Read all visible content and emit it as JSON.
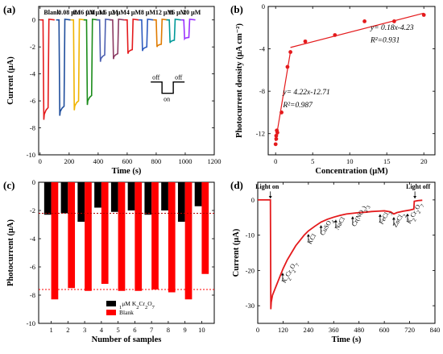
{
  "chart_data": [
    {
      "panel": "(a)",
      "type": "line",
      "xlabel": "Time (s)",
      "ylabel": "Current (μA)",
      "xlim": [
        -10,
        1200
      ],
      "ylim": [
        -10,
        1
      ],
      "xticks": [
        0,
        200,
        400,
        600,
        800,
        1000,
        1200
      ],
      "yticks": [
        0,
        -2,
        -4,
        -6,
        -8,
        -10
      ],
      "grid": false,
      "series": [
        {
          "name": "Blank",
          "color": "#e41a1c",
          "on": 20,
          "off": 55,
          "min": -7.4,
          "end": -6.5
        },
        {
          "name": "0.08 μM",
          "color": "#1f4e9c",
          "on": 130,
          "off": 165,
          "min": -7.1,
          "end": -6.4
        },
        {
          "name": "0.16 μM",
          "color": "#f0b400",
          "on": 230,
          "off": 265,
          "min": -6.7,
          "end": -6.0
        },
        {
          "name": "0.8 μM",
          "color": "#1a8c1a",
          "on": 320,
          "off": 355,
          "min": -6.3,
          "end": -5.6
        },
        {
          "name": "1.6 μM",
          "color": "#4b5fb0",
          "on": 410,
          "off": 445,
          "min": -3.1,
          "end": -2.6
        },
        {
          "name": "2 μM",
          "color": "#8b3a62",
          "on": 500,
          "off": 535,
          "min": -2.9,
          "end": -2.5
        },
        {
          "name": "4 μM",
          "color": "#e41a1c",
          "on": 600,
          "off": 635,
          "min": -2.5,
          "end": -2.2
        },
        {
          "name": "8 μM",
          "color": "#2d5bbf",
          "on": 700,
          "off": 735,
          "min": -2.3,
          "end": -2.0
        },
        {
          "name": "12 μM",
          "color": "#e07b00",
          "on": 800,
          "off": 835,
          "min": -2.0,
          "end": -1.8
        },
        {
          "name": "16 μM",
          "color": "#009999",
          "on": 890,
          "off": 925,
          "min": -1.7,
          "end": -1.5
        },
        {
          "name": "20 μM",
          "color": "#9b30ff",
          "on": 990,
          "off": 1025,
          "min": -1.4,
          "end": -1.3
        }
      ],
      "inset": {
        "off_left": "off",
        "off_right": "off",
        "on": "on"
      }
    },
    {
      "panel": "(b)",
      "type": "scatter",
      "xlabel": "Concentration (μM)",
      "ylabel": "Photocurrent density (μA cm⁻²)",
      "xlim": [
        -1,
        21.5
      ],
      "ylim": [
        -14,
        0
      ],
      "xticks": [
        0,
        5,
        10,
        15,
        20
      ],
      "yticks": [
        0,
        -4,
        -8,
        -12
      ],
      "grid": false,
      "points": [
        {
          "x": 0,
          "y": -13.0
        },
        {
          "x": 0.08,
          "y": -12.5
        },
        {
          "x": 0.08,
          "y": -12.2
        },
        {
          "x": 0.16,
          "y": -11.7
        },
        {
          "x": 0.24,
          "y": -11.9
        },
        {
          "x": 0.8,
          "y": -10.0
        },
        {
          "x": 1.6,
          "y": -5.7
        },
        {
          "x": 2,
          "y": -4.3
        },
        {
          "x": 4,
          "y": -3.3
        },
        {
          "x": 8,
          "y": -2.7
        },
        {
          "x": 12,
          "y": -1.4
        },
        {
          "x": 16,
          "y": -1.4
        },
        {
          "x": 20,
          "y": -0.8
        }
      ],
      "fits": [
        {
          "x_range": [
            0,
            2
          ],
          "slope": 4.22,
          "intercept": -12.71
        },
        {
          "x_range": [
            2,
            20
          ],
          "slope": 0.18,
          "intercept": -4.23
        }
      ],
      "annotations": {
        "fit_high": "y= 0.18x-4.23",
        "r2_high": "R²=0.931",
        "fit_low": "y= 4.22x-12.71",
        "r2_low": "R²=0.987"
      },
      "color": "#e41a1c"
    },
    {
      "panel": "(c)",
      "type": "bar",
      "xlabel": "Number of samples",
      "ylabel": "Photocurrent (μA)",
      "ylim": [
        -10,
        0
      ],
      "yticks": [
        0,
        -2,
        -4,
        -6,
        -8,
        -10
      ],
      "categories": [
        "1",
        "2",
        "3",
        "4",
        "5",
        "6",
        "7",
        "8",
        "9",
        "10"
      ],
      "series": [
        {
          "name": "1μM K2Cr2O7",
          "color": "#000000",
          "values": [
            -2.3,
            -2.2,
            -2.8,
            -1.8,
            -2.1,
            -2.0,
            -2.3,
            -2.0,
            -2.8,
            -1.7
          ]
        },
        {
          "name": "Blank",
          "color": "#ff0000",
          "values": [
            -8.3,
            -7.5,
            -7.7,
            -7.2,
            -7.7,
            -7.7,
            -7.6,
            -7.8,
            -8.3,
            -6.5
          ]
        }
      ],
      "reference_lines": [
        -2.2,
        -7.6
      ],
      "legend": "bottom-center",
      "grid": false
    },
    {
      "panel": "(d)",
      "type": "line",
      "xlabel": "Time (s)",
      "ylabel": "Current (μA)",
      "xlim": [
        0,
        840
      ],
      "ylim": [
        -35,
        5
      ],
      "xticks": [
        0,
        120,
        240,
        360,
        480,
        600,
        720,
        840
      ],
      "yticks": [
        0,
        -10,
        -20,
        -30
      ],
      "color": "#e41a1c",
      "x": [
        0,
        60,
        62,
        64,
        70,
        80,
        90,
        100,
        110,
        120,
        140,
        160,
        180,
        200,
        220,
        240,
        270,
        300,
        330,
        360,
        390,
        420,
        450,
        480,
        510,
        540,
        570,
        600,
        630,
        645,
        660,
        690,
        720,
        740,
        742,
        760,
        780
      ],
      "y": [
        0,
        0,
        -31,
        -29,
        -27,
        -25.5,
        -24,
        -22.5,
        -21,
        -19.5,
        -17,
        -15,
        -13,
        -11.5,
        -10,
        -8.8,
        -7.5,
        -6.3,
        -5.5,
        -4.9,
        -4.4,
        -4.0,
        -3.8,
        -3.6,
        -3.5,
        -3.3,
        -3.2,
        -3.1,
        -3.4,
        -4.0,
        -3.6,
        -3.2,
        -2.9,
        -2.6,
        -0.4,
        -0.2,
        -0.1
      ],
      "annotations": [
        {
          "label": "Light on",
          "x": 60
        },
        {
          "label": "Light off",
          "x": 745
        },
        {
          "label": "K2Cr2O7",
          "x": 118
        },
        {
          "label": "KCl",
          "x": 240
        },
        {
          "label": "CuSO4",
          "x": 300
        },
        {
          "label": "NaCl",
          "x": 370
        },
        {
          "label": "Cr(NO3)3",
          "x": 450
        },
        {
          "label": "FeCl3",
          "x": 580
        },
        {
          "label": "ZnCl2",
          "x": 645
        },
        {
          "label": "K2Cr2O7",
          "x": 710
        }
      ]
    }
  ]
}
